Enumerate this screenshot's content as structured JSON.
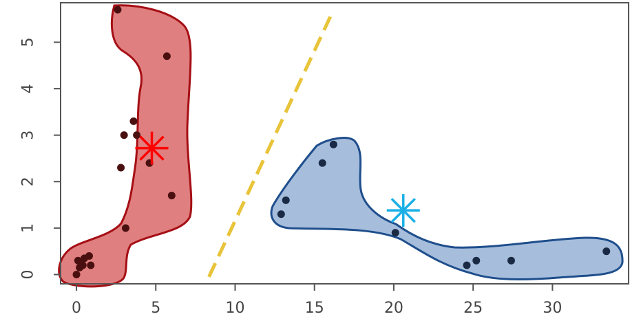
{
  "chart_data": {
    "type": "scatter",
    "title": "",
    "xlabel": "",
    "ylabel": "",
    "xlim": [
      -1,
      34.8
    ],
    "ylim": [
      -0.2,
      5.85
    ],
    "x_ticks": [
      0,
      5,
      10,
      15,
      20,
      25,
      30
    ],
    "x_tick_labels": [
      "0",
      "5",
      "10",
      "15",
      "20",
      "25",
      "30"
    ],
    "y_ticks": [
      0,
      1,
      2,
      3,
      4,
      5
    ],
    "y_tick_labels": [
      "0",
      "1",
      "2",
      "3",
      "4",
      "5"
    ],
    "grid": false,
    "legend": "none",
    "series": [
      {
        "color": "#e07f7f",
        "outline_color": "#a50f15",
        "point_color": "#4a1010",
        "points": [
          {
            "x": 2.6,
            "y": 5.7
          },
          {
            "x": 5.7,
            "y": 4.7
          },
          {
            "x": 3.6,
            "y": 3.3
          },
          {
            "x": 3.0,
            "y": 3.0
          },
          {
            "x": 3.8,
            "y": 3.0
          },
          {
            "x": 4.6,
            "y": 2.4
          },
          {
            "x": 2.8,
            "y": 2.3
          },
          {
            "x": 6.0,
            "y": 1.7
          },
          {
            "x": 3.1,
            "y": 1.0
          },
          {
            "x": 0.1,
            "y": 0.3
          },
          {
            "x": 0.3,
            "y": 0.25
          },
          {
            "x": 0.5,
            "y": 0.35
          },
          {
            "x": 0.8,
            "y": 0.4
          },
          {
            "x": 0.2,
            "y": 0.15
          },
          {
            "x": 0.4,
            "y": 0.2
          },
          {
            "x": 0.9,
            "y": 0.2
          },
          {
            "x": 0.0,
            "y": 0.0
          }
        ],
        "centroid": {
          "x": 4.75,
          "y": 2.72,
          "color": "#ff0000"
        }
      },
      {
        "color": "#a6bedc",
        "outline_color": "#1f4e8c",
        "point_color": "#1a2a44",
        "points": [
          {
            "x": 13.2,
            "y": 1.6
          },
          {
            "x": 12.9,
            "y": 1.3
          },
          {
            "x": 16.2,
            "y": 2.8
          },
          {
            "x": 15.5,
            "y": 2.4
          },
          {
            "x": 20.1,
            "y": 0.9
          },
          {
            "x": 24.6,
            "y": 0.2
          },
          {
            "x": 25.2,
            "y": 0.3
          },
          {
            "x": 27.4,
            "y": 0.3
          },
          {
            "x": 33.4,
            "y": 0.5
          }
        ],
        "centroid": {
          "x": 20.6,
          "y": 1.38,
          "color": "#1ab0e6"
        }
      }
    ],
    "separator_line": {
      "x": [
        8.35,
        16.0
      ],
      "y": [
        -0.05,
        5.55
      ],
      "color": "#e8c43a",
      "style": "dashed"
    }
  }
}
